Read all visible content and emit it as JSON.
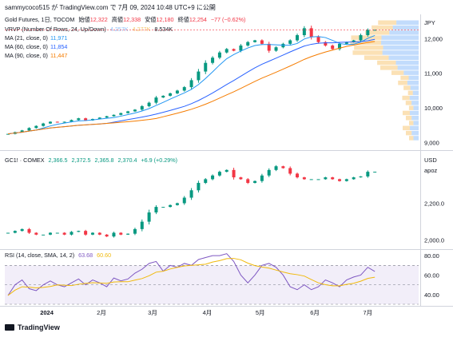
{
  "header": {
    "publish_line": "sammycoco515 が TradingView.com で 7月 09, 2024 10:48 UTC+9 に公開"
  },
  "pane1": {
    "currency": "JPY",
    "symbol_line": {
      "name": "Gold Futures, 1日, TOCOM",
      "o_lbl": "始値",
      "o": "12,322",
      "h_lbl": "高値",
      "h": "12,338",
      "l_lbl": "安値",
      "l": "12,180",
      "c_lbl": "終値",
      "c": "12,254",
      "chg": "−77 (−0.62%)"
    },
    "vrvp": {
      "label": "VRVP (Number Of Rows, 24, Up/Down)",
      "up": "4.257K",
      "down": "4.277K",
      "total": "8.534K"
    },
    "ma": [
      {
        "label": "MA (21, close, 0)",
        "value": "11,971",
        "color": "#2196f3"
      },
      {
        "label": "MA (60, close, 0)",
        "value": "11,854",
        "color": "#2962ff"
      },
      {
        "label": "MA (90, close, 0)",
        "value": "11,447",
        "color": "#f57c00"
      }
    ],
    "y_ticks": [
      "12,000",
      "11,000",
      "10,000",
      "9,000"
    ],
    "y_tick_values": [
      12000,
      11000,
      10000,
      9000
    ],
    "y_range": [
      8850,
      12700
    ]
  },
  "pane2": {
    "symbol_line": {
      "name": "GC1! · COMEX",
      "o": "2,366.5",
      "h": "2,372.5",
      "l": "2,365.8",
      "c": "2,370.4",
      "chg": "+6.9 (+0.29%)"
    },
    "currency": "USD",
    "unit": "apoz",
    "y_ticks": [
      "2,200.0",
      "2,000.0"
    ],
    "y_tick_values": [
      2200,
      2000
    ],
    "y_range": [
      1960,
      2470
    ]
  },
  "pane3": {
    "label": "RSI (14, close, SMA, 14, 2)",
    "rsi": "63.68",
    "sma": "60.60",
    "sma_color": "#f0b90b",
    "y_ticks": [
      "80.00",
      "60.00",
      "40.00"
    ],
    "y_tick_values": [
      80,
      60,
      40
    ],
    "y_range": [
      30,
      85
    ],
    "bands": [
      70,
      50,
      30
    ]
  },
  "x_axis": {
    "labels": [
      "2024",
      "2月",
      "3月",
      "4月",
      "5月",
      "6月",
      "7月"
    ],
    "label_days": [
      22,
      53,
      82,
      113,
      143,
      174,
      204
    ]
  },
  "brand": "TradingView",
  "chart_data": [
    {
      "type": "candlestick",
      "title": "Gold Futures, 1日, TOCOM",
      "ylabel": "JPY",
      "ylim": [
        8850,
        12700
      ],
      "series": [
        {
          "name": "Gold Futures",
          "x_days": [
            0,
            4,
            8,
            12,
            16,
            20,
            24,
            28,
            32,
            36,
            40,
            44,
            48,
            52,
            56,
            60,
            64,
            68,
            72,
            76,
            80,
            84,
            88,
            92,
            96,
            100,
            104,
            108,
            112,
            116,
            120,
            124,
            128,
            132,
            136,
            140,
            144,
            148,
            152,
            156,
            160,
            164,
            168,
            172,
            176,
            180,
            184,
            188,
            192,
            196,
            200,
            204,
            208
          ],
          "close": [
            9250,
            9300,
            9350,
            9420,
            9480,
            9550,
            9600,
            9580,
            9600,
            9650,
            9700,
            9640,
            9680,
            9720,
            9760,
            9800,
            9850,
            9900,
            9950,
            10050,
            10150,
            10300,
            10350,
            10420,
            10500,
            10600,
            10800,
            11050,
            11300,
            11450,
            11600,
            11700,
            11650,
            11800,
            11900,
            11950,
            11850,
            11650,
            11750,
            11850,
            11950,
            12100,
            12300,
            12050,
            11900,
            11800,
            11700,
            11850,
            11900,
            11950,
            12100,
            12250,
            12254
          ]
        },
        {
          "name": "MA (21, close, 0)",
          "last": 11971
        },
        {
          "name": "MA (60, close, 0)",
          "last": 11854
        },
        {
          "name": "MA (90, close, 0)",
          "last": 11447
        }
      ]
    },
    {
      "type": "candlestick",
      "title": "GC1! · COMEX",
      "ylabel": "USD",
      "ylim": [
        1960,
        2470
      ],
      "series": [
        {
          "name": "GC1!",
          "x_days": [
            0,
            4,
            8,
            12,
            16,
            20,
            24,
            28,
            32,
            36,
            40,
            44,
            48,
            52,
            56,
            60,
            64,
            68,
            72,
            76,
            80,
            84,
            88,
            92,
            96,
            100,
            104,
            108,
            112,
            116,
            120,
            124,
            128,
            132,
            136,
            140,
            144,
            148,
            152,
            156,
            160,
            164,
            168,
            172,
            176,
            180,
            184,
            188,
            192,
            196,
            200,
            204,
            208
          ],
          "close": [
            2040,
            2050,
            2060,
            2040,
            2030,
            2030,
            2040,
            2040,
            2030,
            2045,
            2050,
            2030,
            2040,
            2030,
            2020,
            2040,
            2030,
            2035,
            2060,
            2100,
            2150,
            2180,
            2180,
            2190,
            2200,
            2230,
            2270,
            2310,
            2330,
            2350,
            2370,
            2380,
            2340,
            2330,
            2310,
            2320,
            2350,
            2380,
            2400,
            2390,
            2360,
            2340,
            2330,
            2330,
            2330,
            2340,
            2330,
            2320,
            2330,
            2340,
            2345,
            2370,
            2370.4
          ]
        }
      ]
    },
    {
      "type": "line",
      "title": "RSI (14, close, SMA, 14, 2)",
      "ylim": [
        30,
        85
      ],
      "series": [
        {
          "name": "RSI",
          "x_days": [
            0,
            4,
            8,
            12,
            16,
            20,
            24,
            28,
            32,
            36,
            40,
            44,
            48,
            52,
            56,
            60,
            64,
            68,
            72,
            76,
            80,
            84,
            88,
            92,
            96,
            100,
            104,
            108,
            112,
            116,
            120,
            124,
            128,
            132,
            136,
            140,
            144,
            148,
            152,
            156,
            160,
            164,
            168,
            172,
            176,
            180,
            184,
            188,
            192,
            196,
            200,
            204,
            208
          ],
          "values": [
            39,
            50,
            55,
            46,
            44,
            50,
            54,
            50,
            48,
            52,
            56,
            50,
            55,
            52,
            48,
            57,
            54,
            56,
            62,
            66,
            72,
            74,
            64,
            70,
            68,
            72,
            70,
            76,
            78,
            80,
            80,
            82,
            74,
            60,
            52,
            60,
            70,
            72,
            68,
            60,
            48,
            45,
            50,
            45,
            48,
            55,
            52,
            48,
            55,
            58,
            60,
            68,
            63.68
          ]
        },
        {
          "name": "SMA",
          "values_note": "",
          "last": 60.6
        }
      ]
    }
  ]
}
